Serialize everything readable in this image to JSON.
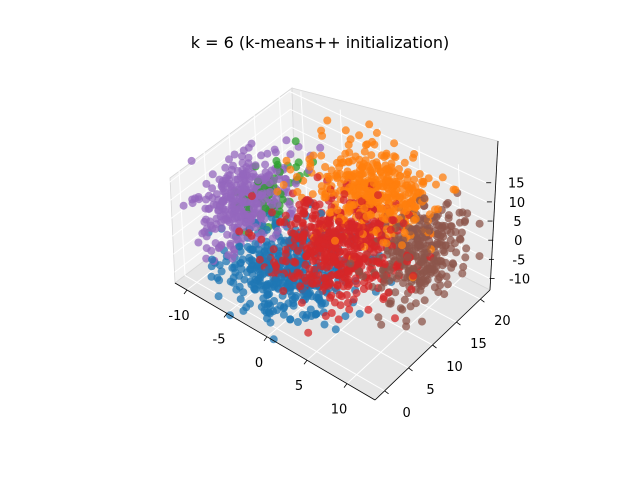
{
  "chart_data": {
    "type": "scatter",
    "projection": "3d",
    "title": "k = 6 (k-means++ initialization)",
    "xlabel": "",
    "ylabel": "",
    "zlabel": "",
    "xlim": [
      -11.5,
      13.5
    ],
    "ylim": [
      -2,
      22
    ],
    "zlim": [
      -13,
      16.5
    ],
    "xticks": [
      -10,
      -5,
      0,
      5,
      10
    ],
    "yticks": [
      0,
      5,
      10,
      15,
      20
    ],
    "zticks": [
      -10,
      -5,
      0,
      5,
      10,
      15
    ],
    "grid": true,
    "legend": null,
    "series": [
      {
        "cluster": 0,
        "color": "#1f77b4",
        "center": [
          -2,
          6,
          -6
        ],
        "spread": [
          3.2,
          4.0,
          3.5
        ],
        "points_approx": 450
      },
      {
        "cluster": 1,
        "color": "#ff7f0e",
        "center": [
          3,
          16,
          9
        ],
        "spread": [
          3.5,
          3.5,
          3.5
        ],
        "points_approx": 420
      },
      {
        "cluster": 2,
        "color": "#2ca02c",
        "center": [
          -7,
          11,
          2
        ],
        "spread": [
          1.2,
          3.0,
          4.0
        ],
        "points_approx": 60
      },
      {
        "cluster": 3,
        "color": "#d62728",
        "center": [
          3,
          9,
          3
        ],
        "spread": [
          3.2,
          4.0,
          4.5
        ],
        "points_approx": 520
      },
      {
        "cluster": 4,
        "color": "#9467bd",
        "center": [
          -8,
          7,
          4
        ],
        "spread": [
          1.8,
          4.0,
          4.0
        ],
        "points_approx": 350
      },
      {
        "cluster": 5,
        "color": "#8c564b",
        "center": [
          9,
          15,
          0
        ],
        "spread": [
          1.8,
          3.5,
          4.5
        ],
        "points_approx": 300
      }
    ]
  }
}
